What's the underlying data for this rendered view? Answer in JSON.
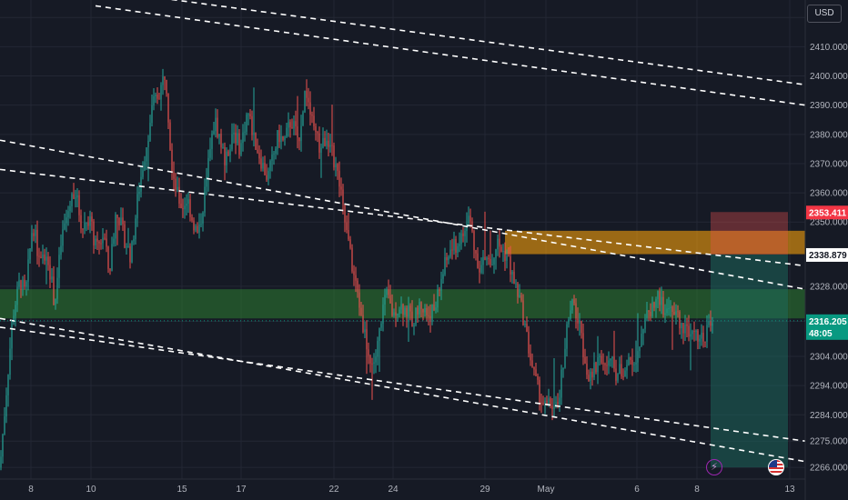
{
  "currency": "USD",
  "colors": {
    "background": "#161a25",
    "grid": "#232734",
    "up": "#26a69a",
    "down": "#ef5350",
    "channel_line": "#ffffff",
    "support_zone": "#2e7d32",
    "resistance_zone": "#f59e0b",
    "stop_zone": "#ef5350",
    "target_zone": "#1b6b5f",
    "current_price_tag": "#089981",
    "stop_price_tag": "#f23645",
    "entry_price_tag": "#ffffff"
  },
  "chart_data": {
    "type": "candlestick",
    "title": "",
    "xlabel": "",
    "ylabel": "",
    "ylim": [
      2262,
      2426
    ],
    "y_ticks": [
      2266,
      2275,
      2284,
      2294,
      2304,
      2316,
      2328,
      2350,
      2360,
      2370,
      2380,
      2390,
      2400,
      2410,
      2420
    ],
    "y_tick_labels": [
      "2266.000",
      "2275.000",
      "2284.000",
      "2294.000",
      "2304.000",
      "2316.000",
      "2328.000",
      "2350.000",
      "2360.000",
      "2370.000",
      "2380.000",
      "2390.000",
      "2400.000",
      "2410.000",
      "2420.000"
    ],
    "x_ticks": [
      "8",
      "10",
      "15",
      "17",
      "22",
      "24",
      "29",
      "May",
      "6",
      "8",
      "13"
    ],
    "grid": true,
    "path": [
      [
        0,
        2266
      ],
      [
        8,
        2296
      ],
      [
        14,
        2318
      ],
      [
        22,
        2330
      ],
      [
        28,
        2325
      ],
      [
        36,
        2350
      ],
      [
        44,
        2335
      ],
      [
        52,
        2340
      ],
      [
        60,
        2322
      ],
      [
        68,
        2345
      ],
      [
        76,
        2355
      ],
      [
        82,
        2362
      ],
      [
        90,
        2348
      ],
      [
        98,
        2352
      ],
      [
        106,
        2340
      ],
      [
        114,
        2346
      ],
      [
        120,
        2332
      ],
      [
        128,
        2355
      ],
      [
        136,
        2345
      ],
      [
        144,
        2338
      ],
      [
        152,
        2360
      ],
      [
        160,
        2375
      ],
      [
        168,
        2390
      ],
      [
        176,
        2395
      ],
      [
        182,
        2402
      ],
      [
        188,
        2372
      ],
      [
        194,
        2360
      ],
      [
        200,
        2355
      ],
      [
        206,
        2358
      ],
      [
        212,
        2350
      ],
      [
        218,
        2345
      ],
      [
        224,
        2358
      ],
      [
        230,
        2372
      ],
      [
        236,
        2385
      ],
      [
        242,
        2378
      ],
      [
        248,
        2370
      ],
      [
        256,
        2382
      ],
      [
        264,
        2375
      ],
      [
        272,
        2388
      ],
      [
        280,
        2378
      ],
      [
        288,
        2370
      ],
      [
        294,
        2365
      ],
      [
        300,
        2372
      ],
      [
        306,
        2380
      ],
      [
        312,
        2377
      ],
      [
        320,
        2385
      ],
      [
        328,
        2378
      ],
      [
        336,
        2396
      ],
      [
        344,
        2382
      ],
      [
        352,
        2375
      ],
      [
        360,
        2380
      ],
      [
        366,
        2372
      ],
      [
        372,
        2365
      ],
      [
        378,
        2352
      ],
      [
        384,
        2340
      ],
      [
        390,
        2330
      ],
      [
        396,
        2320
      ],
      [
        402,
        2310
      ],
      [
        408,
        2300
      ],
      [
        414,
        2305
      ],
      [
        420,
        2320
      ],
      [
        426,
        2325
      ],
      [
        432,
        2318
      ],
      [
        438,
        2322
      ],
      [
        446,
        2320
      ],
      [
        454,
        2316
      ],
      [
        462,
        2322
      ],
      [
        470,
        2318
      ],
      [
        478,
        2320
      ],
      [
        486,
        2332
      ],
      [
        494,
        2340
      ],
      [
        502,
        2342
      ],
      [
        510,
        2346
      ],
      [
        516,
        2352
      ],
      [
        522,
        2340
      ],
      [
        528,
        2334
      ],
      [
        534,
        2338
      ],
      [
        540,
        2335
      ],
      [
        546,
        2343
      ],
      [
        552,
        2340
      ],
      [
        558,
        2338
      ],
      [
        564,
        2330
      ],
      [
        570,
        2325
      ],
      [
        576,
        2316
      ],
      [
        582,
        2305
      ],
      [
        588,
        2296
      ],
      [
        594,
        2290
      ],
      [
        600,
        2286
      ],
      [
        606,
        2288
      ],
      [
        612,
        2285
      ],
      [
        618,
        2300
      ],
      [
        624,
        2316
      ],
      [
        630,
        2322
      ],
      [
        636,
        2315
      ],
      [
        642,
        2305
      ],
      [
        648,
        2295
      ],
      [
        654,
        2300
      ],
      [
        660,
        2305
      ],
      [
        666,
        2300
      ],
      [
        672,
        2302
      ],
      [
        678,
        2298
      ],
      [
        686,
        2300
      ],
      [
        694,
        2302
      ],
      [
        700,
        2305
      ],
      [
        706,
        2314
      ],
      [
        712,
        2318
      ],
      [
        718,
        2322
      ],
      [
        724,
        2325
      ],
      [
        730,
        2318
      ],
      [
        736,
        2322
      ],
      [
        742,
        2318
      ],
      [
        748,
        2316
      ],
      [
        754,
        2312
      ],
      [
        760,
        2315
      ],
      [
        766,
        2312
      ],
      [
        772,
        2310
      ],
      [
        778,
        2314
      ],
      [
        784,
        2316
      ]
    ],
    "shaded_zones": [
      {
        "name": "support",
        "from_x": 0,
        "to_x": 885,
        "low": 2317,
        "high": 2327
      },
      {
        "name": "resistance",
        "from_x": 555,
        "to_x": 885,
        "low": 2339,
        "high": 2347
      }
    ],
    "position": {
      "entry": 2338.879,
      "stop": 2353.411,
      "target": 2266.0,
      "from_x": 781,
      "to_x": 866
    },
    "channel_lines": [
      {
        "x1": 105,
        "y1": 2424,
        "x2": 885,
        "y2": 2390
      },
      {
        "x1": 145,
        "y1": 2428,
        "x2": 885,
        "y2": 2397
      },
      {
        "x1": 0,
        "y1": 2378,
        "x2": 885,
        "y2": 2327
      },
      {
        "x1": 0,
        "y1": 2368,
        "x2": 885,
        "y2": 2335
      },
      {
        "x1": 0,
        "y1": 2314,
        "x2": 885,
        "y2": 2275
      },
      {
        "x1": 0,
        "y1": 2317,
        "x2": 885,
        "y2": 2268
      }
    ],
    "price_tags": [
      {
        "name": "stop",
        "value": "2353.411",
        "price": 2353.411
      },
      {
        "name": "entry",
        "value": "2338.879",
        "price": 2338.879
      },
      {
        "name": "current",
        "value": "2316.205",
        "price": 2316.205,
        "countdown": "48:05"
      }
    ],
    "event_icons": [
      "lightning-icon",
      "us-flag-icon"
    ]
  }
}
